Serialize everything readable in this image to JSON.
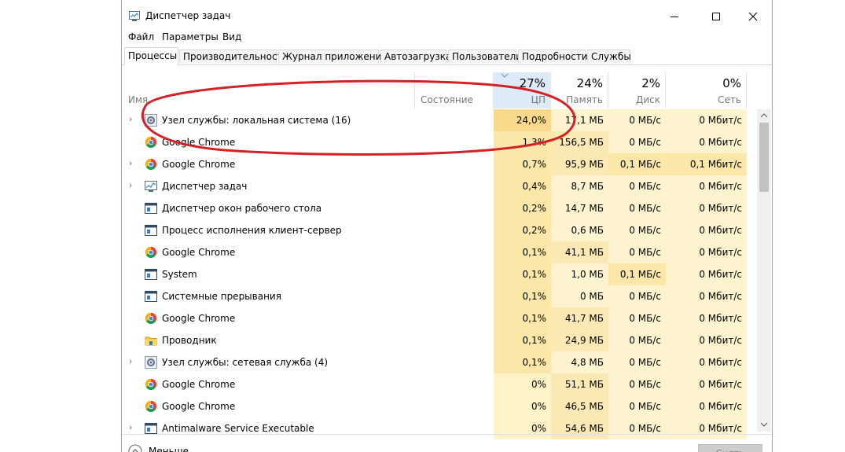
{
  "window": {
    "title": "Диспетчер задач",
    "minimize": "—",
    "maximize": "☐",
    "close": "✕"
  },
  "menu": [
    "Файл",
    "Параметры",
    "Вид"
  ],
  "tabs": [
    "Процессы",
    "Производительность",
    "Журнал приложений",
    "Автозагрузка",
    "Пользователи",
    "Подробности",
    "Службы"
  ],
  "active_tab": 0,
  "columns": {
    "name": "Имя",
    "status": "Состояние",
    "cpu": {
      "pct": "27%",
      "label": "ЦП"
    },
    "memory": {
      "pct": "24%",
      "label": "Память"
    },
    "disk": {
      "pct": "2%",
      "label": "Диск"
    },
    "network": {
      "pct": "0%",
      "label": "Сеть"
    }
  },
  "colors": {
    "cpu_high": "#f9da8c",
    "cpu_mid": "#fbe7a8",
    "cpu_low": "#fdf2c8",
    "mem_mid": "#fbe9b5",
    "mem_low": "#fdf3cf",
    "disk_mid": "#fbe7a8",
    "disk_low": "#fdf3cf",
    "net_low": "#fdf3cf",
    "net_mid": "#fbe7a8",
    "annotation_red": "#d42126"
  },
  "processes": [
    {
      "name": "Узел службы: локальная система (16)",
      "icon": "gear-icon",
      "expand": true,
      "cpu": "24,0%",
      "mem": "17,1 МБ",
      "disk": "0 МБ/с",
      "net": "0 Мбит/с"
    },
    {
      "name": "Google Chrome",
      "icon": "chrome-icon",
      "expand": false,
      "cpu": "1,3%",
      "mem": "156,5 МБ",
      "disk": "0 МБ/с",
      "net": "0 Мбит/с"
    },
    {
      "name": "Google Chrome",
      "icon": "chrome-icon",
      "expand": true,
      "cpu": "0,7%",
      "mem": "95,9 МБ",
      "disk": "0,1 МБ/с",
      "net": "0,1 Мбит/с"
    },
    {
      "name": "Диспетчер задач",
      "icon": "taskmgr-icon",
      "expand": true,
      "cpu": "0,4%",
      "mem": "8,7 МБ",
      "disk": "0 МБ/с",
      "net": "0 Мбит/с"
    },
    {
      "name": "Диспетчер окон рабочего стола",
      "icon": "window-icon",
      "expand": false,
      "cpu": "0,2%",
      "mem": "14,7 МБ",
      "disk": "0 МБ/с",
      "net": "0 Мбит/с"
    },
    {
      "name": "Процесс исполнения клиент-сервер",
      "icon": "window-icon",
      "expand": false,
      "cpu": "0,2%",
      "mem": "0,6 МБ",
      "disk": "0 МБ/с",
      "net": "0 Мбит/с"
    },
    {
      "name": "Google Chrome",
      "icon": "chrome-icon",
      "expand": false,
      "cpu": "0,1%",
      "mem": "41,1 МБ",
      "disk": "0 МБ/с",
      "net": "0 Мбит/с"
    },
    {
      "name": "System",
      "icon": "window-icon",
      "expand": false,
      "cpu": "0,1%",
      "mem": "1,0 МБ",
      "disk": "0,1 МБ/с",
      "net": "0 Мбит/с"
    },
    {
      "name": "Системные прерывания",
      "icon": "window-icon",
      "expand": false,
      "cpu": "0,1%",
      "mem": "0 МБ",
      "disk": "0 МБ/с",
      "net": "0 Мбит/с"
    },
    {
      "name": "Google Chrome",
      "icon": "chrome-icon",
      "expand": false,
      "cpu": "0,1%",
      "mem": "41,7 МБ",
      "disk": "0 МБ/с",
      "net": "0 Мбит/с"
    },
    {
      "name": "Проводник",
      "icon": "folder-icon",
      "expand": false,
      "cpu": "0,1%",
      "mem": "24,9 МБ",
      "disk": "0 МБ/с",
      "net": "0 Мбит/с"
    },
    {
      "name": "Узел службы: сетевая служба (4)",
      "icon": "gear-icon",
      "expand": true,
      "cpu": "0,1%",
      "mem": "4,8 МБ",
      "disk": "0 МБ/с",
      "net": "0 Мбит/с"
    },
    {
      "name": "Google Chrome",
      "icon": "chrome-icon",
      "expand": false,
      "cpu": "0%",
      "mem": "51,1 МБ",
      "disk": "0 МБ/с",
      "net": "0 Мбит/с"
    },
    {
      "name": "Google Chrome",
      "icon": "chrome-icon",
      "expand": false,
      "cpu": "0%",
      "mem": "46,5 МБ",
      "disk": "0 МБ/с",
      "net": "0 Мбит/с"
    },
    {
      "name": "Antimalware Service Executable",
      "icon": "window-icon",
      "expand": true,
      "cpu": "0%",
      "mem": "54,6 МБ",
      "disk": "0 МБ/с",
      "net": "0 Мбит/с"
    }
  ],
  "footer": {
    "fewer": "Меньше",
    "end_task": "Снять задачу"
  }
}
